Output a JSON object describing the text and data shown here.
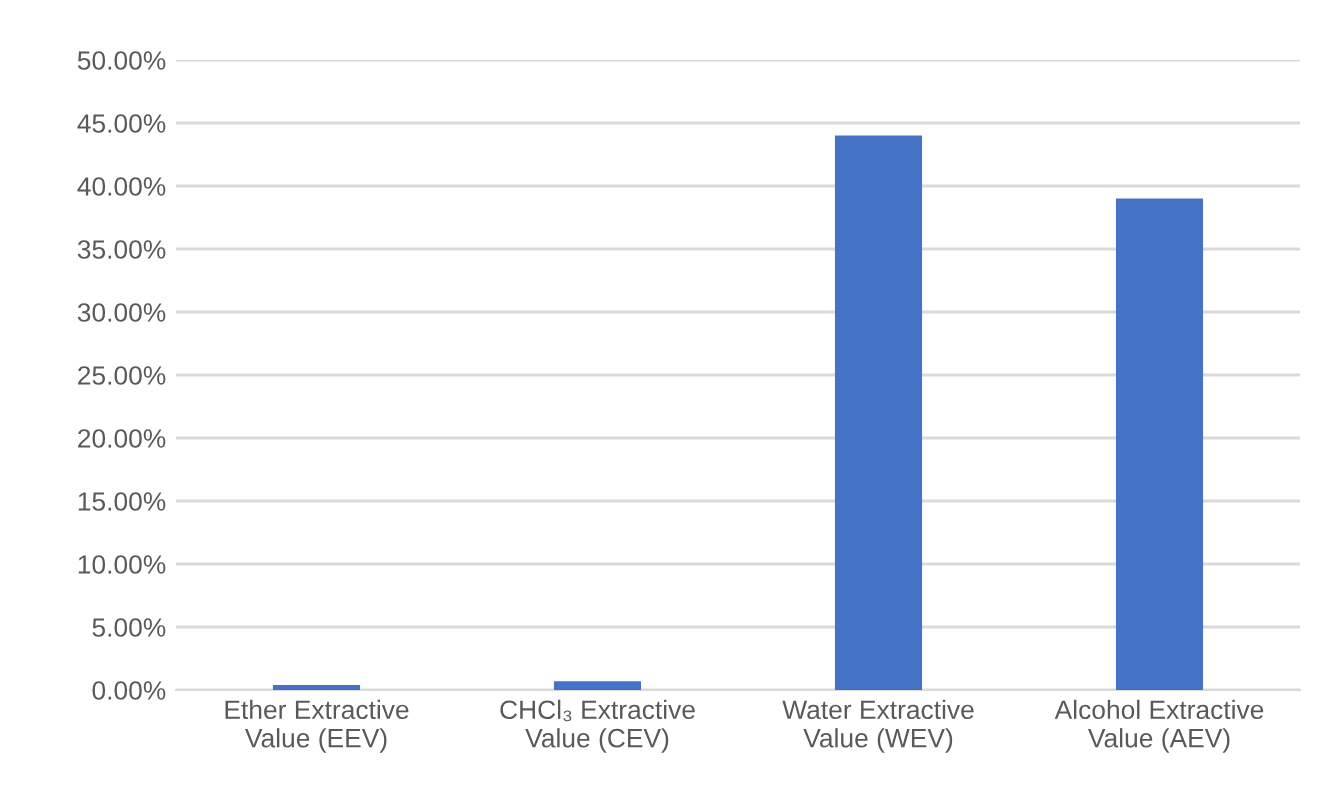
{
  "chart_data": {
    "type": "bar",
    "categories": [
      "Ether Extractive\nValue (EEV)",
      "CHCl₃ Extractive\nValue (CEV)",
      "Water Extractive\nValue (WEV)",
      "Alcohol Extractive\nValue (AEV)"
    ],
    "values": [
      0.4,
      0.7,
      44,
      39
    ],
    "color": "#4472c4",
    "ylim": [
      0,
      50
    ],
    "yticks": [
      {
        "value": 0,
        "label": "0.00%"
      },
      {
        "value": 5,
        "label": "5.00%"
      },
      {
        "value": 10,
        "label": "10.00%"
      },
      {
        "value": 15,
        "label": "15.00%"
      },
      {
        "value": 20,
        "label": "20.00%"
      },
      {
        "value": 25,
        "label": "25.00%"
      },
      {
        "value": 30,
        "label": "30.00%"
      },
      {
        "value": 35,
        "label": "35.00%"
      },
      {
        "value": 40,
        "label": "40.00%"
      },
      {
        "value": 45,
        "label": "45.00%"
      },
      {
        "value": 50,
        "label": "50.00%"
      }
    ],
    "grid": "y",
    "legend": false
  }
}
